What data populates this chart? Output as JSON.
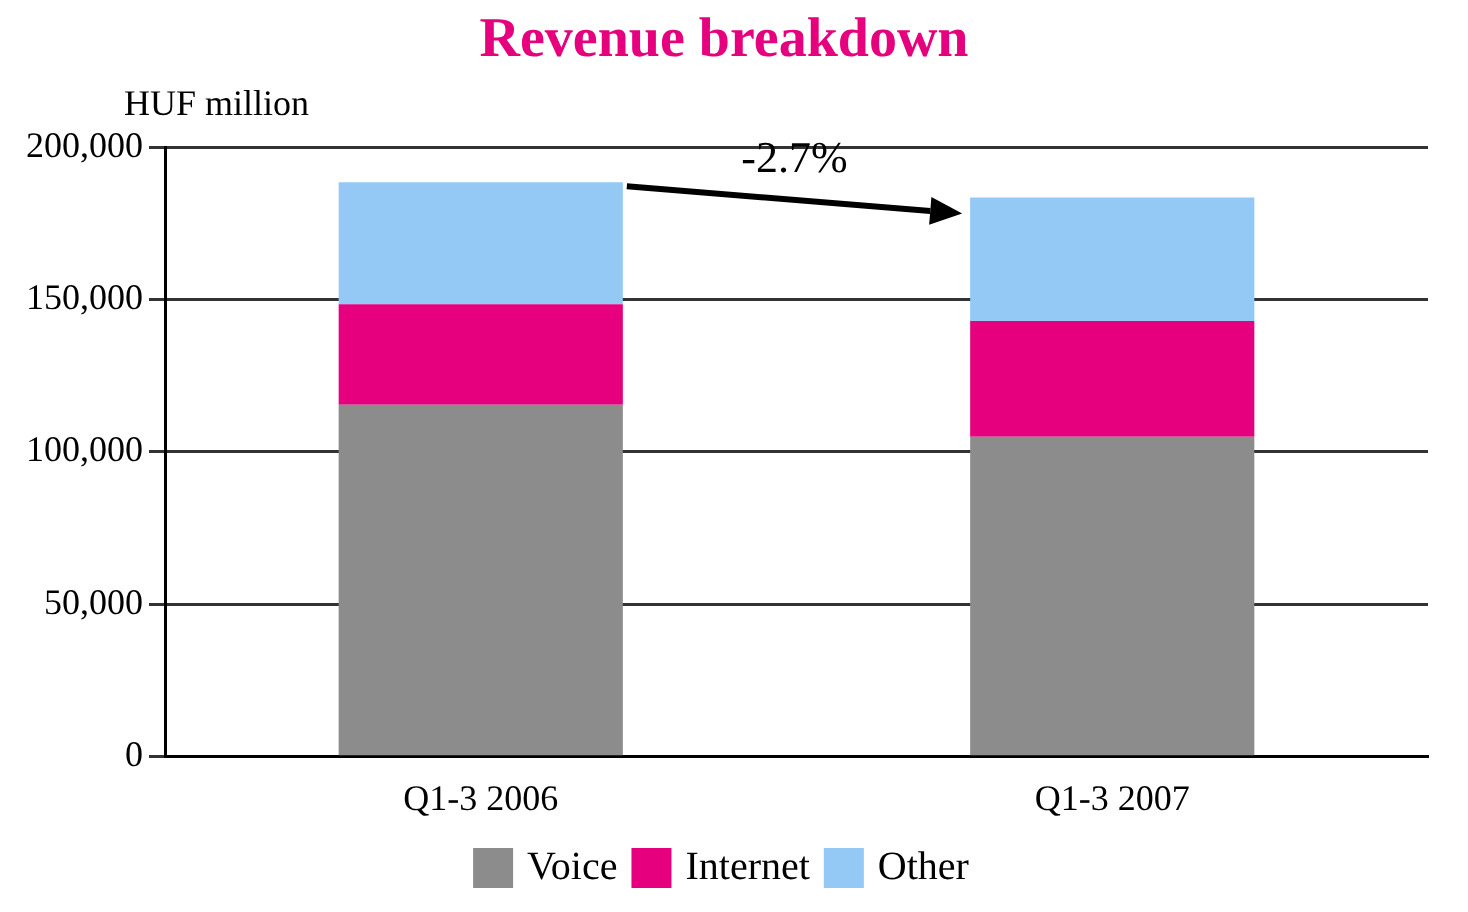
{
  "chart_data": {
    "type": "bar",
    "title": "Revenue breakdown",
    "ylabel": "HUF million",
    "categories": [
      "Q1-3 2006",
      "Q1-3 2007"
    ],
    "series": [
      {
        "name": "Voice",
        "color": "#8c8c8c",
        "values": [
          115500,
          105000
        ]
      },
      {
        "name": "Internet",
        "color": "#e6007e",
        "values": [
          33000,
          38000
        ]
      },
      {
        "name": "Other",
        "color": "#94c8f5",
        "values": [
          40000,
          40500
        ]
      }
    ],
    "stacked": true,
    "ylim": [
      0,
      200000
    ],
    "yticks": [
      {
        "value": 0,
        "label": "0"
      },
      {
        "value": 50000,
        "label": "50,000"
      },
      {
        "value": 100000,
        "label": "100,000"
      },
      {
        "value": 150000,
        "label": "150,000"
      },
      {
        "value": 200000,
        "label": "200,000"
      }
    ],
    "grid": "y",
    "legend": "bottom",
    "annotations": [
      "-2.7%"
    ]
  }
}
